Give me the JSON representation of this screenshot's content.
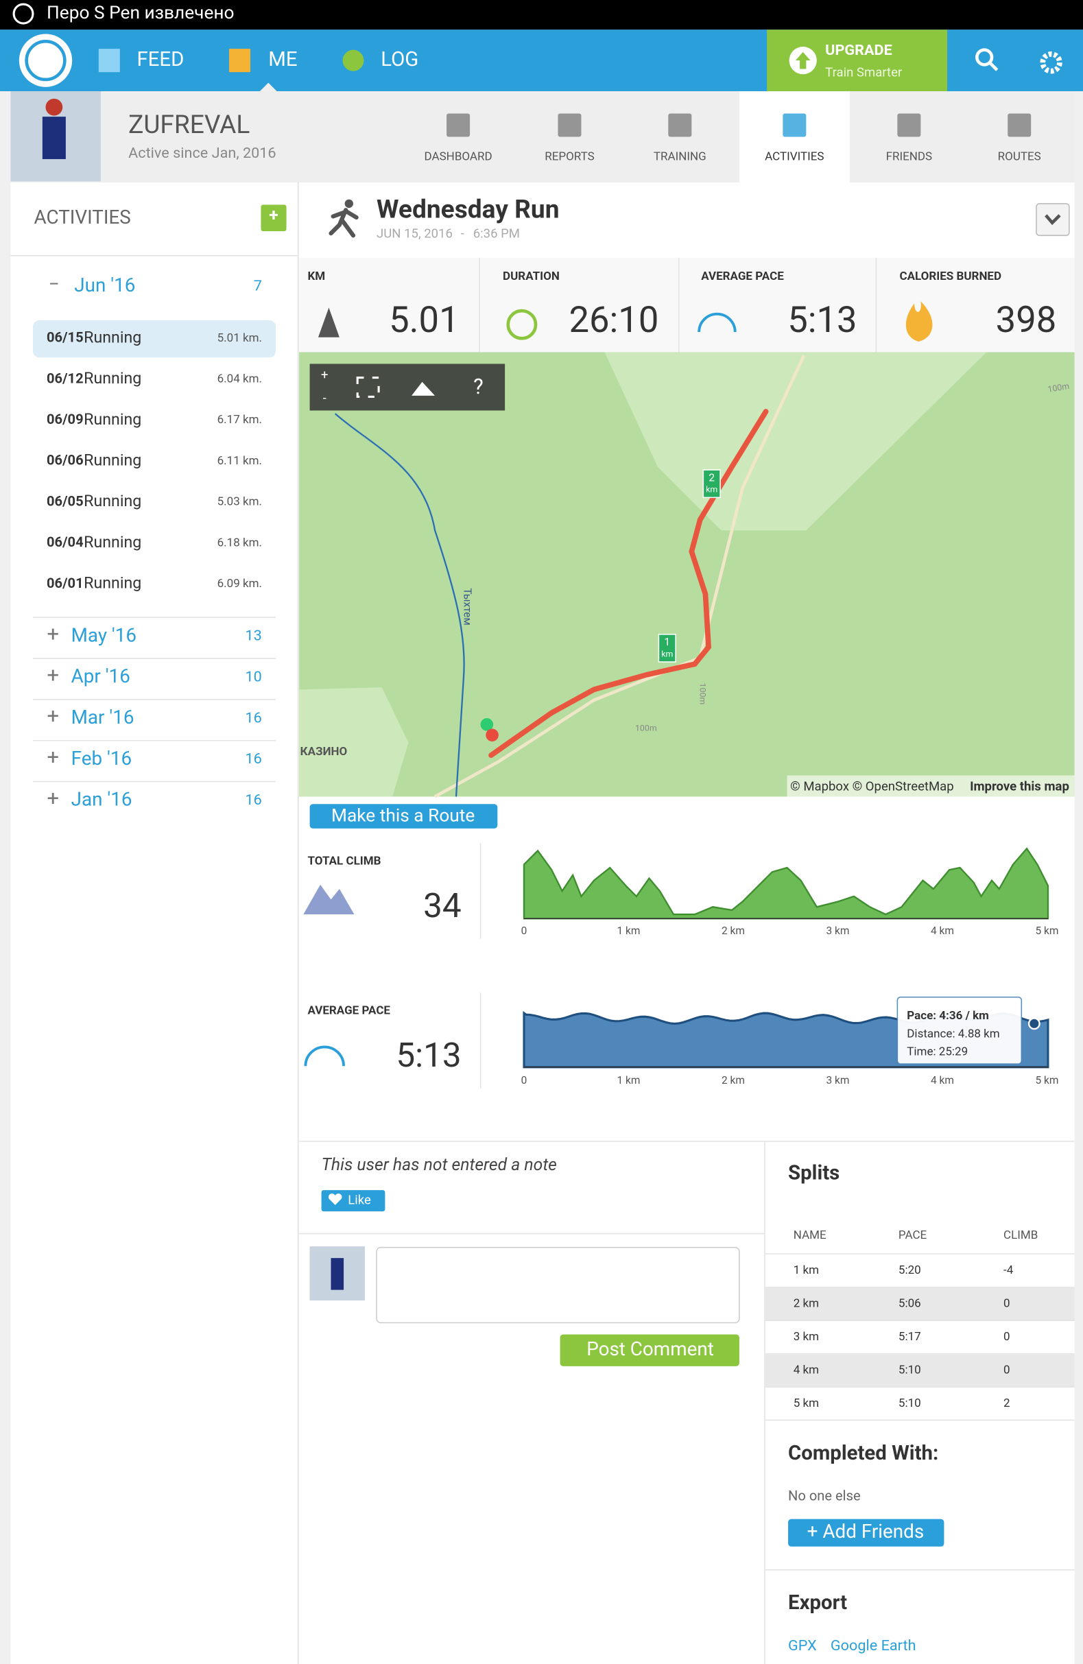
{
  "status_bar": {
    "text": "Перо S Pen извлечено"
  },
  "nav": {
    "items": [
      "FEED",
      "ME",
      "LOG"
    ],
    "upgrade": {
      "title": "UPGRADE",
      "subtitle": "Train Smarter"
    }
  },
  "profile": {
    "name": "ZUFREVAL",
    "since": "Active since Jan, 2016"
  },
  "tabs": [
    "DASHBOARD",
    "REPORTS",
    "TRAINING",
    "ACTIVITIES",
    "FRIENDS",
    "ROUTES"
  ],
  "sidebar": {
    "title": "ACTIVITIES",
    "add": "+",
    "current_month": {
      "toggle": "−",
      "label": "Jun '16",
      "count": "7"
    },
    "activities": [
      {
        "date": "06/15",
        "type": "Running",
        "distance": "5.01 km."
      },
      {
        "date": "06/12",
        "type": "Running",
        "distance": "6.04 km."
      },
      {
        "date": "06/09",
        "type": "Running",
        "distance": "6.17 km."
      },
      {
        "date": "06/06",
        "type": "Running",
        "distance": "6.11 km."
      },
      {
        "date": "06/05",
        "type": "Running",
        "distance": "5.03 km."
      },
      {
        "date": "06/04",
        "type": "Running",
        "distance": "6.18 km."
      },
      {
        "date": "06/01",
        "type": "Running",
        "distance": "6.09 km."
      }
    ],
    "months": [
      {
        "toggle": "+",
        "label": "May '16",
        "count": "13"
      },
      {
        "toggle": "+",
        "label": "Apr '16",
        "count": "10"
      },
      {
        "toggle": "+",
        "label": "Mar '16",
        "count": "16"
      },
      {
        "toggle": "+",
        "label": "Feb '16",
        "count": "16"
      },
      {
        "toggle": "+",
        "label": "Jan '16",
        "count": "16"
      }
    ]
  },
  "activity": {
    "title": "Wednesday Run",
    "date": "JUN 15, 2016",
    "separator": "-",
    "time": "6:36 PM",
    "stats": [
      {
        "label": "KM",
        "value": "5.01"
      },
      {
        "label": "DURATION",
        "value": "26:10"
      },
      {
        "label": "AVERAGE PACE",
        "value": "5:13"
      },
      {
        "label": "CALORIES BURNED",
        "value": "398"
      }
    ]
  },
  "map": {
    "zoom_in": "+",
    "zoom_out": "-",
    "help": "?",
    "river": "Тыхтем",
    "place": "КАЗИНО",
    "contours": [
      "100m",
      "100m",
      "100m"
    ],
    "markers": [
      {
        "number": "2",
        "unit": "km"
      },
      {
        "number": "1",
        "unit": "km"
      }
    ],
    "attribution": "© Mapbox © OpenStreetMap",
    "improve": "Improve this map"
  },
  "route_button": "Make this a Route",
  "climb": {
    "label": "TOTAL CLIMB",
    "value": "34"
  },
  "pace": {
    "label": "AVERAGE PACE",
    "value": "5:13",
    "tooltip": [
      "Pace: 4:36 / km",
      "Distance: 4.88 km",
      "Time: 25:29"
    ]
  },
  "profile_axis": [
    "0",
    "1 km",
    "2 km",
    "3 km",
    "4 km",
    "5 km"
  ],
  "note": {
    "text": "This user has not entered a note",
    "like": "Like",
    "post": "Post Comment"
  },
  "splits": {
    "title": "Splits",
    "headers": [
      "NAME",
      "PACE",
      "CLIMB"
    ],
    "rows": [
      [
        "1 km",
        "5:20",
        "-4"
      ],
      [
        "2 km",
        "5:06",
        "0"
      ],
      [
        "3 km",
        "5:17",
        "0"
      ],
      [
        "4 km",
        "5:10",
        "0"
      ],
      [
        "5 km",
        "5:10",
        "2"
      ]
    ]
  },
  "completed": {
    "title": "Completed With:",
    "text": "No one else",
    "button": "+ Add Friends"
  },
  "export": {
    "title": "Export",
    "links": [
      "GPX",
      "Google Earth"
    ]
  }
}
